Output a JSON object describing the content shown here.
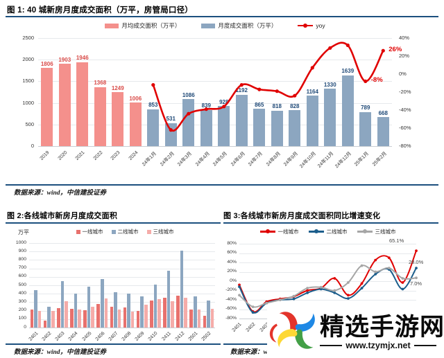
{
  "colors": {
    "navy_rule": "#1B4F7E",
    "bar_salmon": "#F4908C",
    "bar_steel": "#8CA6C0",
    "fig2_red": "#E8716D",
    "fig2_steel": "#8CA6C0",
    "fig2_pink": "#F5ACA9",
    "line_red": "#E00000",
    "line_blue": "#1C5E8C",
    "line_gray": "#A6A6A6",
    "label_red": "#D94A47",
    "label_navy": "#1F4977"
  },
  "chart_data": [
    {
      "id": "fig1",
      "type": "bar+line",
      "title": "图 1: 40 城新房月度成交面积（万平，房管局口径）",
      "legend": [
        "月均成交面积（万平）",
        "月度成交面积（万平）",
        "yoy"
      ],
      "source": "数据来源：wind，中信建投证券",
      "categories": [
        "2019",
        "2020",
        "2021",
        "2022",
        "2023",
        "2024",
        "24年1月",
        "24年2月",
        "24年3月",
        "24年4月",
        "24年5月",
        "24年6月",
        "24年7月",
        "24年8月",
        "24年9月",
        "24年10月",
        "24年11月",
        "24年12月",
        "25年1月",
        "25年2月"
      ],
      "bars": {
        "values": [
          1806,
          1903,
          1946,
          1368,
          1249,
          1006,
          853,
          531,
          1086,
          839,
          928,
          1192,
          865,
          818,
          828,
          1164,
          1330,
          1639,
          789,
          668
        ],
        "monthly_avg_count": 6
      },
      "yoy": {
        "values": [
          null,
          null,
          null,
          null,
          null,
          null,
          -12,
          -62,
          -44,
          -39,
          -36,
          -12,
          -17,
          -19,
          -24,
          7,
          29,
          32,
          -8,
          26
        ],
        "point_labels": [
          {
            "index": 18,
            "text": "-8%"
          },
          {
            "index": 19,
            "text": "26%"
          }
        ]
      },
      "axes": {
        "left_ticks": [
          0,
          500,
          1000,
          1500,
          2000,
          2500
        ],
        "left_max": 2500,
        "right_ticks": [
          40,
          20,
          0,
          -20,
          -40,
          -60,
          -80
        ],
        "right_min": -80,
        "right_max": 40
      }
    },
    {
      "id": "fig2",
      "type": "grouped-bar",
      "title": "图 2:各线城市新房月度成交面积",
      "unit": "万平",
      "source": "数据来源：wind，中信建投证券",
      "categories": [
        "2401",
        "2402",
        "2403",
        "2404",
        "2405",
        "2406",
        "2407",
        "2408",
        "2409",
        "2410",
        "2411",
        "2412",
        "2501",
        "2502"
      ],
      "series": [
        {
          "name": "一线城市",
          "values": [
            215,
            85,
            230,
            225,
            205,
            280,
            245,
            235,
            195,
            320,
            350,
            380,
            215,
            140
          ]
        },
        {
          "name": "二线城市",
          "values": [
            440,
            250,
            550,
            405,
            485,
            575,
            415,
            400,
            370,
            510,
            675,
            910,
            370,
            320
          ]
        },
        {
          "name": "三线城市",
          "values": [
            200,
            200,
            315,
            215,
            245,
            345,
            215,
            185,
            270,
            340,
            310,
            350,
            215,
            220
          ]
        }
      ],
      "axes": {
        "yticks": [
          0,
          100,
          200,
          300,
          400,
          500,
          600,
          700,
          800,
          900,
          1000
        ],
        "ymax": 1000
      }
    },
    {
      "id": "fig3",
      "type": "line",
      "title": "图 3:各线城市新房月度成交面积同比增速变化",
      "source": "数据来源：wind",
      "categories": [
        "2401",
        "2402",
        "2403",
        "2404",
        "2405",
        "2406",
        "2407",
        "2408",
        "2409",
        "2410",
        "2411",
        "2412",
        "2501",
        "2502"
      ],
      "series": [
        {
          "name": "一线城市",
          "values": [
            -8,
            -65,
            -44,
            -38,
            -33,
            -20,
            -15,
            6,
            -30,
            -5,
            45,
            50,
            -3,
            65.1
          ],
          "end_label": "65.1%"
        },
        {
          "name": "二线城市",
          "values": [
            -12,
            -67,
            -47,
            -40,
            -38,
            -25,
            -17,
            -25,
            -37,
            -15,
            15,
            25,
            -17,
            28
          ],
          "end_label": "28.0%"
        },
        {
          "name": "三线城市",
          "values": [
            -30,
            -55,
            -47,
            -40,
            -32,
            -15,
            -13,
            -20,
            -3,
            33,
            20,
            28,
            6,
            7
          ],
          "end_label": "7.0%"
        }
      ],
      "axes": {
        "yticks": [
          80,
          60,
          40,
          20,
          0,
          -20,
          -40,
          -60,
          -80
        ],
        "ymin": -80,
        "ymax": 80
      }
    }
  ],
  "watermark": {
    "site_name": "精选手游网",
    "site_url": "www.tzymjx.net"
  }
}
